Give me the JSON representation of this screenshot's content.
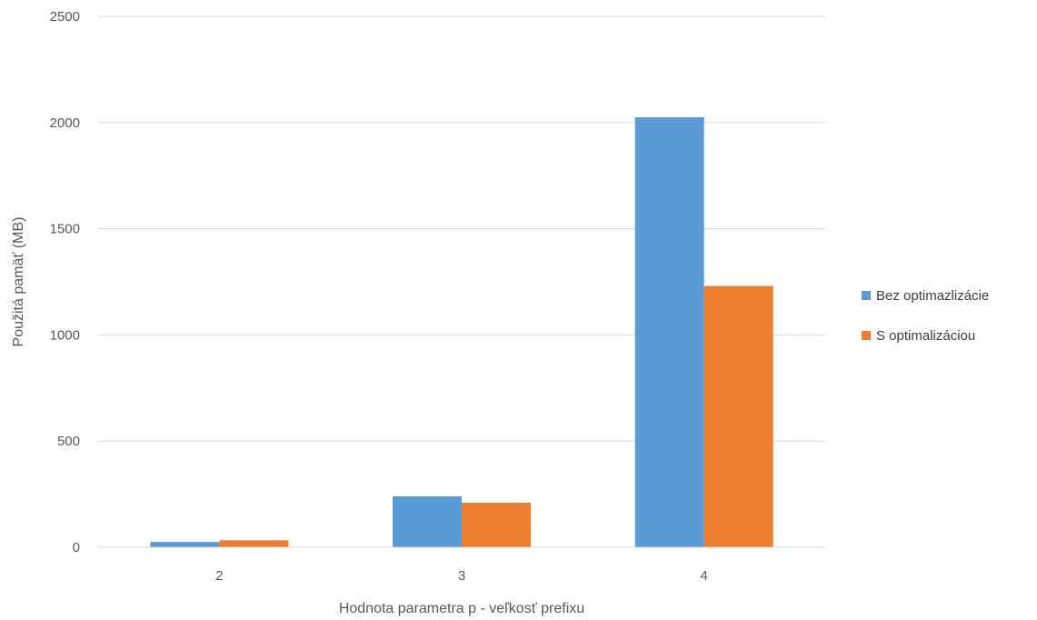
{
  "chart_data": {
    "type": "bar",
    "title": "",
    "xlabel": "Hodnota parametra p - veľkosť prefixu",
    "ylabel": "Použitá pamäť (MB)",
    "categories": [
      "2",
      "3",
      "4"
    ],
    "ylim": [
      0,
      2500
    ],
    "yticks": [
      "0",
      "500",
      "1000",
      "1500",
      "2000",
      "2500"
    ],
    "grid": true,
    "legend_position": "right",
    "series": [
      {
        "name": "Bez optimazlizácie",
        "color": "#5B9BD5",
        "values": [
          25,
          240,
          2025
        ]
      },
      {
        "name": "S optimalizáciou",
        "color": "#ED7D31",
        "values": [
          33,
          210,
          1230
        ]
      }
    ]
  }
}
